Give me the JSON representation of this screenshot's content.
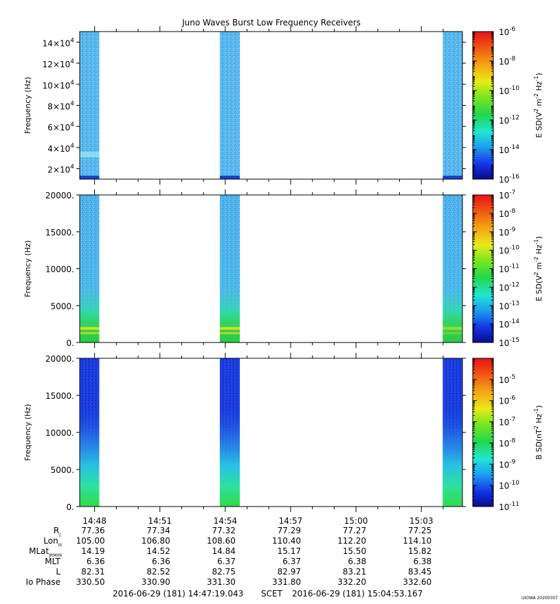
{
  "chart_data": {
    "title": "Juno Waves Burst Low Frequency Receivers",
    "x_tick_labels": [
      "14:48",
      "14:51",
      "14:54",
      "14:57",
      "15:00",
      "15:03"
    ],
    "bursts": [
      {
        "start": "14:47:19",
        "end": "14:48:13"
      },
      {
        "start": "14:53:45",
        "end": "14:54:40"
      },
      {
        "start": "15:03:59",
        "end": "15:04:53"
      }
    ],
    "panels": [
      {
        "type": "heatmap",
        "ylabel": "Frequency (Hz)",
        "ylim": [
          10000,
          150000
        ],
        "y_ticks": [
          {
            "value": 20000,
            "mant": "2×10",
            "exp": "4"
          },
          {
            "value": 40000,
            "mant": "4×10",
            "exp": "4"
          },
          {
            "value": 60000,
            "mant": "6×10",
            "exp": "4"
          },
          {
            "value": 80000,
            "mant": "8×10",
            "exp": "4"
          },
          {
            "value": 100000,
            "mant": "10×10",
            "exp": "4"
          },
          {
            "value": 120000,
            "mant": "12×10",
            "exp": "4"
          },
          {
            "value": 140000,
            "mant": "14×10",
            "exp": "4"
          }
        ],
        "colorbar_label": {
          "prefix": "E SD(V",
          "sup1": "2",
          "mid1": " m",
          "sup2": "-2",
          "mid2": " Hz",
          "sup3": "-1",
          "suffix": ")"
        },
        "colorbar_range": [
          -16,
          -6
        ],
        "colorbar_ticks": [
          {
            "exp": -6,
            "text": "-6"
          },
          {
            "exp": -8,
            "text": "-8"
          },
          {
            "exp": -10,
            "text": "-10"
          },
          {
            "exp": -12,
            "text": "-12"
          },
          {
            "exp": -14,
            "text": "-14"
          },
          {
            "exp": -16,
            "text": "-16"
          }
        ]
      },
      {
        "type": "heatmap",
        "ylabel": "Frequency (Hz)",
        "ylim": [
          0,
          20000
        ],
        "y_ticks": [
          {
            "value": 0,
            "label": "0."
          },
          {
            "value": 5000,
            "label": "5000."
          },
          {
            "value": 10000,
            "label": "10000."
          },
          {
            "value": 15000,
            "label": "15000."
          },
          {
            "value": 20000,
            "label": "20000."
          }
        ],
        "colorbar_label": {
          "prefix": "E SD(V",
          "sup1": "2",
          "mid1": " m",
          "sup2": "-2",
          "mid2": " Hz",
          "sup3": "-1",
          "suffix": ")"
        },
        "colorbar_range": [
          -15,
          -7
        ],
        "colorbar_ticks": [
          {
            "exp": -7,
            "text": "-7"
          },
          {
            "exp": -8,
            "text": "-8"
          },
          {
            "exp": -9,
            "text": "-9"
          },
          {
            "exp": -10,
            "text": "-10"
          },
          {
            "exp": -11,
            "text": "-11"
          },
          {
            "exp": -12,
            "text": "-12"
          },
          {
            "exp": -13,
            "text": "-13"
          },
          {
            "exp": -14,
            "text": "-14"
          },
          {
            "exp": -15,
            "text": "-15"
          }
        ]
      },
      {
        "type": "heatmap",
        "ylabel": "Frequency (Hz)",
        "ylim": [
          0,
          20000
        ],
        "y_ticks": [
          {
            "value": 0,
            "label": "0."
          },
          {
            "value": 5000,
            "label": "5000."
          },
          {
            "value": 10000,
            "label": "10000."
          },
          {
            "value": 15000,
            "label": "15000."
          },
          {
            "value": 20000,
            "label": "20000."
          }
        ],
        "colorbar_label": {
          "prefix": "B SD(nT",
          "sup1": "2",
          "mid1": " Hz",
          "sup2": "-1",
          "mid2": "",
          "sup3": "",
          "suffix": ")"
        },
        "colorbar_range": [
          -11,
          -4
        ],
        "colorbar_ticks": [
          {
            "exp": -5,
            "text": "-5"
          },
          {
            "exp": -6,
            "text": "-6"
          },
          {
            "exp": -7,
            "text": "-7"
          },
          {
            "exp": -8,
            "text": "-8"
          },
          {
            "exp": -9,
            "text": "-9"
          },
          {
            "exp": -10,
            "text": "-10"
          },
          {
            "exp": -11,
            "text": "-11"
          }
        ]
      }
    ],
    "ephemeris": [
      {
        "main": "R",
        "sub": "J",
        "values": [
          "77.36",
          "77.34",
          "77.32",
          "77.29",
          "77.27",
          "77.25"
        ]
      },
      {
        "main": "Lon",
        "sub": "III",
        "values": [
          "105.00",
          "106.80",
          "108.60",
          "110.40",
          "112.20",
          "114.10"
        ]
      },
      {
        "main": "MLat",
        "sub": "JRM09",
        "values": [
          "14.19",
          "14.52",
          "14.84",
          "15.17",
          "15.50",
          "15.82"
        ]
      },
      {
        "main": "MLT",
        "sub": "",
        "values": [
          "6.36",
          "6.36",
          "6.37",
          "6.37",
          "6.38",
          "6.38"
        ]
      },
      {
        "main": "L",
        "sub": "",
        "values": [
          "82.31",
          "82.52",
          "82.75",
          "82.97",
          "83.21",
          "83.45"
        ]
      },
      {
        "main": "Io Phase",
        "sub": "",
        "values": [
          "330.50",
          "330.90",
          "331.30",
          "331.80",
          "332.20",
          "332.60"
        ]
      }
    ],
    "time_start": "2016-06-29 (181) 14:47:19.043",
    "time_label": "SCET",
    "time_end": "2016-06-29 (181) 15:04:53.167",
    "footer_tag": "UIOWA 20200307"
  }
}
